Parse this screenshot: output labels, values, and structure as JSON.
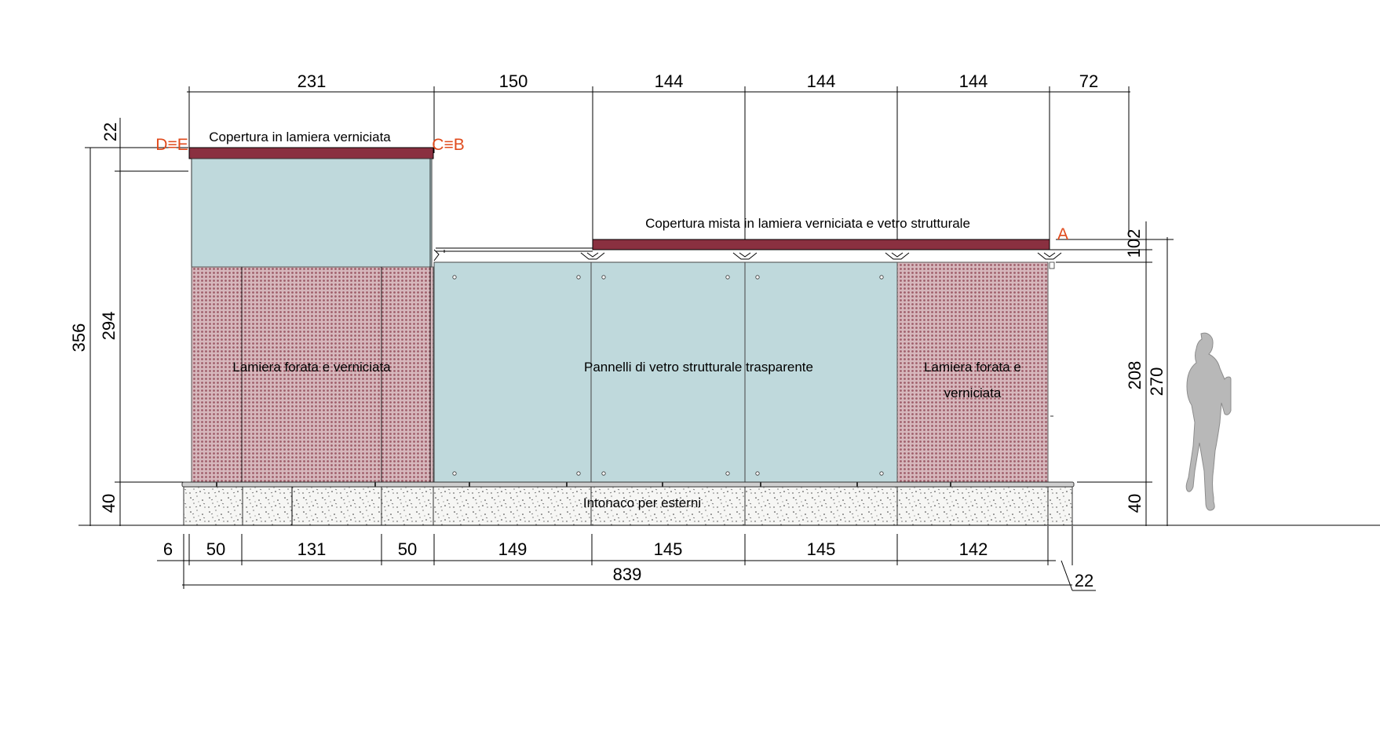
{
  "colors": {
    "roof": "#8a3040",
    "glass": "#bfd9dc",
    "perforated": "#b88890",
    "plaster": "#f4f4f2",
    "markers": "#e04a1c"
  },
  "labels": {
    "roof_left": "Copertura in lamiera verniciata",
    "roof_mixed": "Copertura mista in lamiera verniciata e vetro strutturale",
    "perforated_left": "Lamiera forata e verniciata",
    "glass_panels": "Pannelli di vetro strutturale trasparente",
    "perforated_right_1": "Lamiera forata e",
    "perforated_right_2": "verniciata",
    "base": "Intonaco per esterni"
  },
  "markers": {
    "de": "D≡E",
    "cb": "C≡B",
    "a": "A"
  },
  "top_dims": [
    "231",
    "150",
    "144",
    "144",
    "144",
    "72"
  ],
  "bottom_dims": [
    "6",
    "50",
    "131",
    "50",
    "149",
    "145",
    "145",
    "142"
  ],
  "total_dim": "839",
  "right_offset_dim": "22",
  "left_dims": {
    "top": "22",
    "total": "356",
    "middle": "294",
    "base": "40"
  },
  "right_dims": {
    "upper": "102",
    "glass": "208",
    "total": "270",
    "base": "40"
  },
  "figure_icon": "human-silhouette-icon"
}
